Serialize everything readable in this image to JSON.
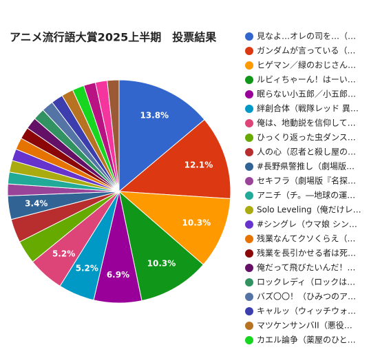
{
  "chart_data": {
    "type": "pie",
    "title": "アニメ流行語大賞2025上半期　投票結果",
    "categories": [
      "見なよ…オレの司を…（…",
      "ガンダムが言っている（…",
      "ヒゲマン／緑のおじさん…",
      "ルビィちゃーん！はーい…",
      "眠らない小五郎／小五郎…",
      "絆創合体（戦隊レッド 異…",
      "俺は、地動説を信仰して…",
      "ひっくり返った虫ダンス…",
      "人の心（忍者と殺し屋の…",
      "#長野県警推し（劇場版…",
      "セキフラ（劇場版『名探…",
      "アニチ（チ。―地球の運…",
      "Solo Leveling（俺だけレ…",
      "#シングレ（ウマ娘 シン…",
      "残業なんてクソくらえ（…",
      "残業を長引かせる者は死…",
      "俺だって飛びたいんだ！…",
      "ロックレディ（ロックは…",
      "バズ〇〇！（ひみつのア…",
      "キャルッ（ウィッチウォ…",
      "マツケンサンバII（悪役…",
      "カエル論争（薬屋のひと…",
      null,
      null,
      null
    ],
    "values": [
      13.8,
      12.1,
      10.3,
      10.3,
      6.9,
      5.2,
      5.2,
      3.4,
      3.4,
      3.4,
      1.7,
      1.7,
      1.7,
      1.7,
      1.7,
      1.7,
      1.7,
      1.7,
      1.7,
      1.7,
      1.7,
      1.7,
      1.7,
      1.7,
      1.7
    ],
    "value_labels": [
      "13.8%",
      "12.1%",
      "10.3%",
      "10.3%",
      "6.9%",
      "5.2%",
      "5.2%",
      null,
      null,
      "3.4%",
      null,
      null,
      null,
      null,
      null,
      null,
      null,
      null,
      null,
      null,
      null,
      null,
      null,
      null,
      null
    ],
    "colors": [
      "#3366cc",
      "#dc3912",
      "#ff9900",
      "#109618",
      "#990099",
      "#0099c6",
      "#dd4477",
      "#66aa00",
      "#b82e2e",
      "#316395",
      "#994499",
      "#22aa99",
      "#aaaa11",
      "#6633cc",
      "#e67300",
      "#8b0707",
      "#651067",
      "#329262",
      "#5574a6",
      "#3b3eac",
      "#b77322",
      "#16d620",
      "#b91383",
      "#f4359e",
      "#9c5935"
    ],
    "legend": "right"
  }
}
